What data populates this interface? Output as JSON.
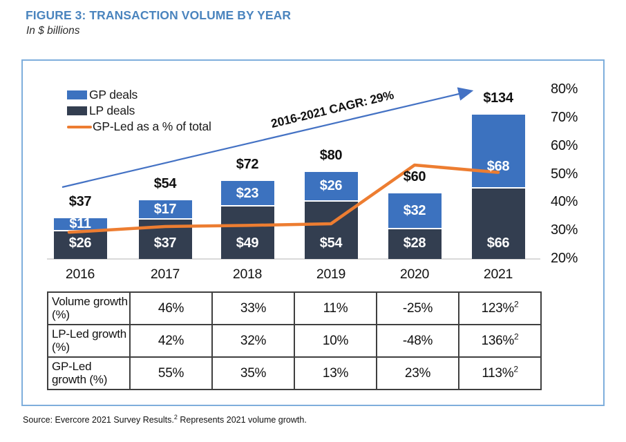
{
  "figure": {
    "title": "FIGURE 3: TRANSACTION VOLUME BY YEAR",
    "subtitle": "In $ billions"
  },
  "chart_data": {
    "type": "bar",
    "stacked": true,
    "title": "FIGURE 3: TRANSACTION VOLUME BY YEAR",
    "subtitle_units": "In $ billions",
    "categories": [
      "2016",
      "2017",
      "2018",
      "2019",
      "2020",
      "2021"
    ],
    "series": [
      {
        "name": "LP deals",
        "values": [
          26,
          37,
          49,
          54,
          28,
          66
        ],
        "labels": [
          "$26",
          "$37",
          "$49",
          "$54",
          "$28",
          "$66"
        ],
        "color": "#333e50"
      },
      {
        "name": "GP deals",
        "values": [
          11,
          17,
          23,
          26,
          32,
          68
        ],
        "labels": [
          "$11",
          "$17",
          "$23",
          "$26",
          "$32",
          "$68"
        ],
        "color": "#3c72bf"
      }
    ],
    "totals": {
      "values": [
        37,
        54,
        72,
        80,
        60,
        134
      ],
      "labels": [
        "$37",
        "$54",
        "$72",
        "$80",
        "$60",
        "$134"
      ]
    },
    "line_series": {
      "name": "GP-Led as a % of total",
      "values_pct": [
        29.7,
        31.5,
        31.9,
        32.5,
        53.3,
        50.7
      ],
      "color": "#ed7d31"
    },
    "right_axis": {
      "ticks": [
        "80%",
        "70%",
        "60%",
        "50%",
        "40%",
        "30%",
        "20%"
      ],
      "min_pct": 20,
      "max_pct": 80,
      "grid": false
    },
    "annotation": {
      "text": "2016-2021 CAGR: 29%",
      "arrow_color": "#4472c4"
    },
    "legend_position": "top-left"
  },
  "table": {
    "rows": [
      {
        "label": "Volume growth (%)",
        "values": [
          "46%",
          "33%",
          "11%",
          "-25%",
          "123%"
        ],
        "sup": "2"
      },
      {
        "label": "LP-Led growth (%)",
        "values": [
          "42%",
          "32%",
          "10%",
          "-48%",
          "136%"
        ],
        "sup": "2"
      },
      {
        "label": "GP-Led growth (%)",
        "values": [
          "55%",
          "35%",
          "13%",
          "23%",
          "113%"
        ],
        "sup": "2"
      }
    ]
  },
  "source": {
    "prefix": "Source: Evercore 2021 Survey Results.",
    "sup": "2",
    "suffix": "Represents 2021 volume growth."
  },
  "colors": {
    "gp_bar": "#3c72bf",
    "lp_bar": "#333e50",
    "gp_led_line": "#ed7d31",
    "trend_arrow": "#4472c4",
    "frame_border": "#7eaedc",
    "title_text": "#4a84be",
    "axis_baseline": "#d9d9d9"
  }
}
